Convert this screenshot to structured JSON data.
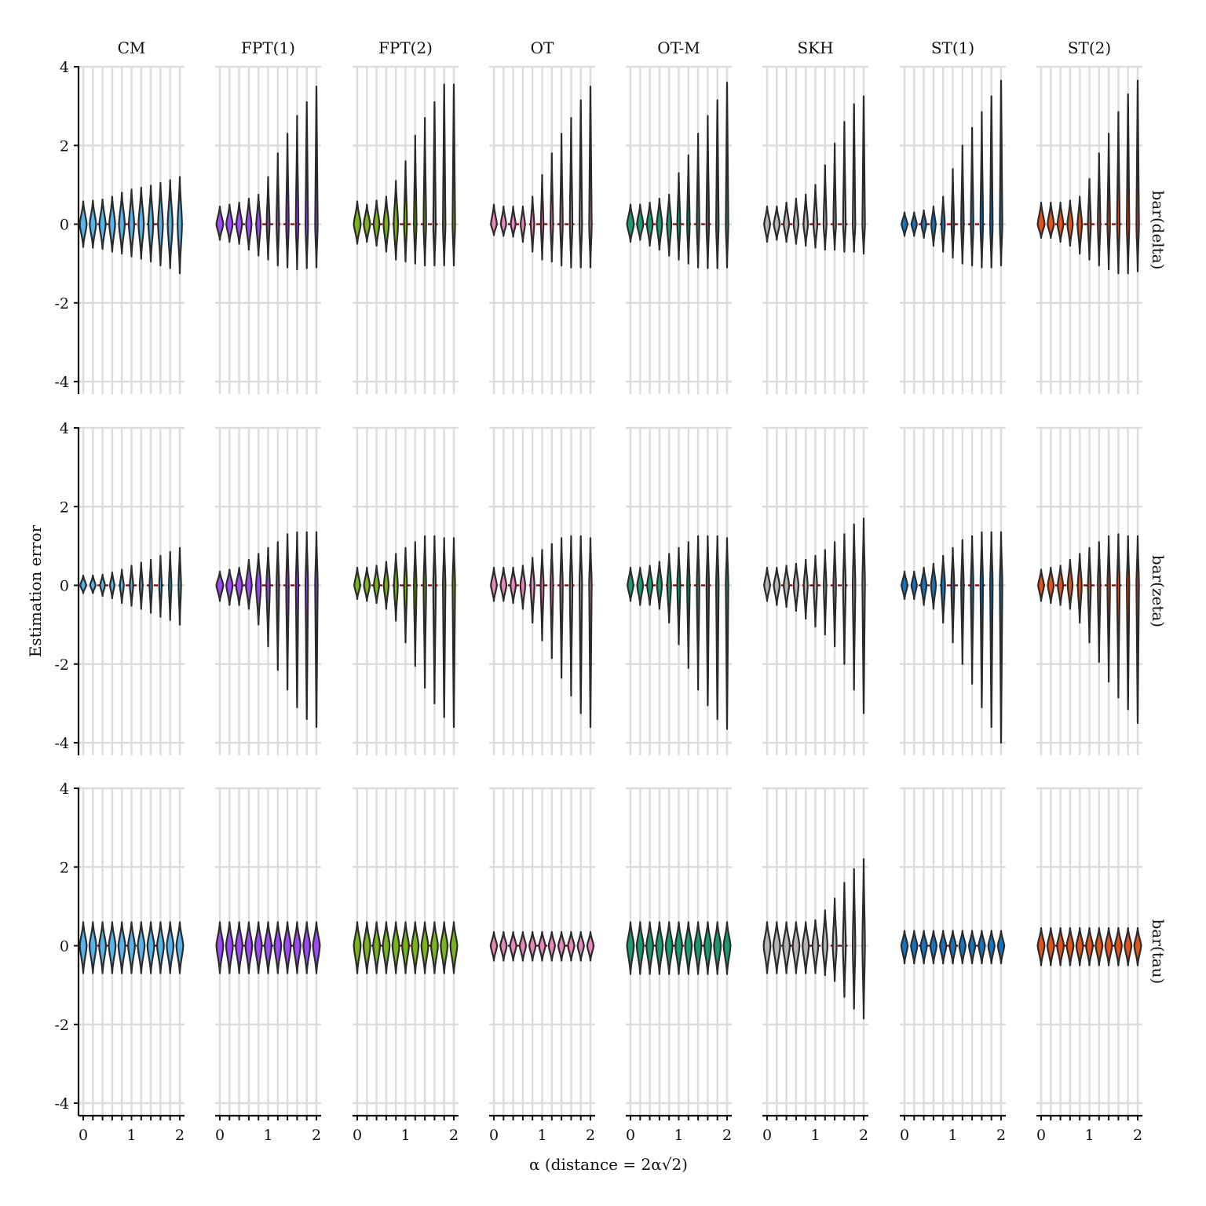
{
  "chart_data": {
    "type": "violin",
    "facet_columns": [
      "CM",
      "FPT(1)",
      "FPT(2)",
      "OT",
      "OT-M",
      "SKH",
      "ST(1)",
      "ST(2)"
    ],
    "facet_rows": [
      "bar(delta)",
      "bar(zeta)",
      "bar(tau)"
    ],
    "xlabel": "α (distance  = 2α√2)",
    "ylabel": "Estimation error",
    "xlim": [
      0,
      2
    ],
    "ylim": [
      -4,
      4
    ],
    "x_ticks": [
      0,
      1,
      2
    ],
    "y_ticks": [
      4,
      2,
      0,
      -2,
      -4
    ],
    "x": [
      0,
      0.2,
      0.4,
      0.6,
      0.8,
      1.0,
      1.2,
      1.4,
      1.6,
      1.8,
      2.0
    ],
    "reference_line": {
      "y": 0,
      "color": "#8b0000",
      "style": "dashed",
      "x_range": [
        0,
        1.6
      ]
    },
    "grid": true,
    "colors": {
      "CM": "#56b4e9",
      "FPT(1)": "#9d4af7",
      "FPT(2)": "#7bb31a",
      "OT": "#e589ba",
      "OT-M": "#1a9a70",
      "SKH": "#b3b3b3",
      "ST(1)": "#1673be",
      "ST(2)": "#e0531a"
    },
    "panels": {
      "bar(delta)": {
        "CM": {
          "max": [
            0.58,
            0.6,
            0.63,
            0.7,
            0.8,
            0.88,
            0.93,
            0.98,
            1.05,
            1.12,
            1.2
          ],
          "min": [
            -0.58,
            -0.6,
            -0.63,
            -0.7,
            -0.75,
            -0.82,
            -0.88,
            -0.95,
            -1.05,
            -1.12,
            -1.25
          ],
          "width": [
            0.14,
            0.13,
            0.13,
            0.12,
            0.12,
            0.11,
            0.11,
            0.1,
            0.1,
            0.1,
            0.09
          ]
        },
        "FPT(1)": {
          "max": [
            0.45,
            0.5,
            0.55,
            0.65,
            0.75,
            1.2,
            1.8,
            2.3,
            2.75,
            3.1,
            3.5
          ],
          "min": [
            -0.4,
            -0.45,
            -0.5,
            -0.65,
            -0.8,
            -0.9,
            -1.05,
            -1.1,
            -1.15,
            -1.12,
            -1.1
          ],
          "width": [
            0.14,
            0.13,
            0.12,
            0.11,
            0.09,
            0.06,
            0.04,
            0.03,
            0.03,
            0.03,
            0.03
          ]
        },
        "FPT(2)": {
          "max": [
            0.58,
            0.5,
            0.6,
            0.7,
            1.1,
            1.6,
            2.25,
            2.7,
            3.1,
            3.55,
            3.55
          ],
          "min": [
            -0.5,
            -0.45,
            -0.55,
            -0.7,
            -0.9,
            -0.95,
            -1.0,
            -1.05,
            -1.05,
            -1.05,
            -1.05
          ],
          "width": [
            0.14,
            0.13,
            0.12,
            0.11,
            0.09,
            0.06,
            0.04,
            0.03,
            0.03,
            0.03,
            0.03
          ]
        },
        "OT": {
          "max": [
            0.5,
            0.45,
            0.45,
            0.45,
            0.7,
            1.25,
            1.8,
            2.3,
            2.7,
            3.15,
            3.5
          ],
          "min": [
            -0.28,
            -0.3,
            -0.32,
            -0.45,
            -0.7,
            -0.9,
            -0.95,
            -1.05,
            -1.1,
            -1.1,
            -1.1
          ],
          "width": [
            0.12,
            0.11,
            0.1,
            0.09,
            0.07,
            0.05,
            0.04,
            0.03,
            0.03,
            0.03,
            0.03
          ]
        },
        "OT-M": {
          "max": [
            0.5,
            0.5,
            0.55,
            0.65,
            0.75,
            1.3,
            1.75,
            2.3,
            2.75,
            3.15,
            3.6
          ],
          "min": [
            -0.45,
            -0.4,
            -0.55,
            -0.65,
            -0.8,
            -0.9,
            -1.0,
            -1.1,
            -1.12,
            -1.12,
            -1.1
          ],
          "width": [
            0.14,
            0.13,
            0.12,
            0.11,
            0.09,
            0.06,
            0.04,
            0.03,
            0.03,
            0.03,
            0.03
          ]
        },
        "SKH": {
          "max": [
            0.45,
            0.45,
            0.55,
            0.65,
            0.75,
            1.0,
            1.5,
            2.05,
            2.6,
            3.05,
            3.25
          ],
          "min": [
            -0.45,
            -0.4,
            -0.45,
            -0.5,
            -0.55,
            -0.6,
            -0.65,
            -0.65,
            -0.7,
            -0.7,
            -0.75
          ],
          "width": [
            0.12,
            0.12,
            0.11,
            0.1,
            0.09,
            0.08,
            0.06,
            0.05,
            0.04,
            0.04,
            0.03
          ]
        },
        "ST(1)": {
          "max": [
            0.3,
            0.3,
            0.35,
            0.45,
            0.7,
            1.4,
            2.0,
            2.45,
            2.85,
            3.25,
            3.65
          ],
          "min": [
            -0.3,
            -0.3,
            -0.35,
            -0.55,
            -0.7,
            -0.85,
            -1.0,
            -1.05,
            -1.1,
            -1.1,
            -1.05
          ],
          "width": [
            0.12,
            0.11,
            0.1,
            0.09,
            0.07,
            0.05,
            0.04,
            0.03,
            0.03,
            0.03,
            0.03
          ]
        },
        "ST(2)": {
          "max": [
            0.55,
            0.55,
            0.55,
            0.6,
            0.7,
            1.15,
            1.8,
            2.3,
            2.85,
            3.3,
            3.65
          ],
          "min": [
            -0.35,
            -0.35,
            -0.45,
            -0.55,
            -0.75,
            -0.9,
            -1.05,
            -1.15,
            -1.25,
            -1.25,
            -1.2
          ],
          "width": [
            0.14,
            0.13,
            0.12,
            0.11,
            0.09,
            0.06,
            0.04,
            0.03,
            0.03,
            0.03,
            0.03
          ]
        }
      },
      "bar(zeta)": {
        "CM": {
          "max": [
            0.25,
            0.25,
            0.27,
            0.33,
            0.4,
            0.5,
            0.58,
            0.65,
            0.75,
            0.85,
            0.95
          ],
          "min": [
            -0.2,
            -0.2,
            -0.27,
            -0.33,
            -0.45,
            -0.52,
            -0.6,
            -0.7,
            -0.8,
            -0.88,
            -1.0
          ],
          "width": [
            0.12,
            0.11,
            0.1,
            0.09,
            0.08,
            0.07,
            0.06,
            0.05,
            0.04,
            0.04,
            0.03
          ]
        },
        "FPT(1)": {
          "max": [
            0.35,
            0.4,
            0.45,
            0.65,
            0.8,
            0.95,
            1.1,
            1.3,
            1.35,
            1.35,
            1.35
          ],
          "min": [
            -0.4,
            -0.5,
            -0.5,
            -0.6,
            -1.0,
            -1.55,
            -2.15,
            -2.65,
            -3.1,
            -3.4,
            -3.6
          ],
          "width": [
            0.14,
            0.13,
            0.13,
            0.12,
            0.1,
            0.07,
            0.04,
            0.03,
            0.03,
            0.03,
            0.03
          ]
        },
        "FPT(2)": {
          "max": [
            0.45,
            0.45,
            0.5,
            0.6,
            0.8,
            0.95,
            1.1,
            1.25,
            1.25,
            1.2,
            1.2
          ],
          "min": [
            -0.35,
            -0.4,
            -0.45,
            -0.6,
            -0.9,
            -1.45,
            -2.05,
            -2.6,
            -3.0,
            -3.35,
            -3.6
          ],
          "width": [
            0.12,
            0.12,
            0.11,
            0.1,
            0.08,
            0.06,
            0.04,
            0.03,
            0.03,
            0.03,
            0.03
          ]
        },
        "OT": {
          "max": [
            0.45,
            0.45,
            0.45,
            0.5,
            0.7,
            0.9,
            1.05,
            1.2,
            1.25,
            1.25,
            1.2
          ],
          "min": [
            -0.4,
            -0.4,
            -0.45,
            -0.6,
            -0.95,
            -1.4,
            -1.85,
            -2.35,
            -2.8,
            -3.25,
            -3.6
          ],
          "width": [
            0.12,
            0.12,
            0.11,
            0.1,
            0.08,
            0.06,
            0.04,
            0.03,
            0.03,
            0.03,
            0.03
          ]
        },
        "OT-M": {
          "max": [
            0.45,
            0.45,
            0.5,
            0.6,
            0.8,
            0.95,
            1.1,
            1.25,
            1.25,
            1.25,
            1.2
          ],
          "min": [
            -0.4,
            -0.5,
            -0.5,
            -0.6,
            -0.95,
            -1.5,
            -2.1,
            -2.65,
            -3.05,
            -3.4,
            -3.65
          ],
          "width": [
            0.12,
            0.12,
            0.11,
            0.1,
            0.08,
            0.06,
            0.04,
            0.03,
            0.03,
            0.03,
            0.03
          ]
        },
        "SKH": {
          "max": [
            0.45,
            0.45,
            0.5,
            0.55,
            0.65,
            0.75,
            0.9,
            1.1,
            1.3,
            1.55,
            1.7
          ],
          "min": [
            -0.4,
            -0.5,
            -0.55,
            -0.65,
            -0.85,
            -1.05,
            -1.25,
            -1.55,
            -2.0,
            -2.65,
            -3.25
          ],
          "width": [
            0.12,
            0.12,
            0.11,
            0.1,
            0.08,
            0.07,
            0.05,
            0.04,
            0.04,
            0.03,
            0.03
          ]
        },
        "ST(1)": {
          "max": [
            0.35,
            0.35,
            0.45,
            0.55,
            0.75,
            0.95,
            1.15,
            1.25,
            1.35,
            1.35,
            1.35
          ],
          "min": [
            -0.35,
            -0.35,
            -0.5,
            -0.6,
            -0.95,
            -1.45,
            -2.0,
            -2.5,
            -3.1,
            -3.6,
            -4.0
          ],
          "width": [
            0.12,
            0.11,
            0.11,
            0.1,
            0.08,
            0.06,
            0.04,
            0.03,
            0.03,
            0.03,
            0.03
          ]
        },
        "ST(2)": {
          "max": [
            0.4,
            0.45,
            0.5,
            0.65,
            0.8,
            0.95,
            1.1,
            1.25,
            1.3,
            1.25,
            1.25
          ],
          "min": [
            -0.4,
            -0.45,
            -0.5,
            -0.6,
            -0.95,
            -1.45,
            -1.95,
            -2.45,
            -2.85,
            -3.15,
            -3.5
          ],
          "width": [
            0.12,
            0.12,
            0.11,
            0.1,
            0.08,
            0.06,
            0.04,
            0.03,
            0.03,
            0.03,
            0.03
          ]
        }
      },
      "bar(tau)": {
        "CM": {
          "max": [
            0.6,
            0.6,
            0.6,
            0.6,
            0.6,
            0.6,
            0.6,
            0.6,
            0.6,
            0.6,
            0.6
          ],
          "min": [
            -0.7,
            -0.7,
            -0.7,
            -0.7,
            -0.7,
            -0.7,
            -0.7,
            -0.7,
            -0.7,
            -0.7,
            -0.7
          ],
          "width": [
            0.14,
            0.14,
            0.14,
            0.14,
            0.14,
            0.14,
            0.14,
            0.14,
            0.14,
            0.14,
            0.14
          ]
        },
        "FPT(1)": {
          "max": [
            0.6,
            0.6,
            0.6,
            0.6,
            0.6,
            0.6,
            0.6,
            0.6,
            0.6,
            0.6,
            0.6
          ],
          "min": [
            -0.7,
            -0.7,
            -0.7,
            -0.7,
            -0.7,
            -0.7,
            -0.7,
            -0.7,
            -0.7,
            -0.7,
            -0.7
          ],
          "width": [
            0.14,
            0.14,
            0.14,
            0.14,
            0.14,
            0.14,
            0.14,
            0.14,
            0.14,
            0.14,
            0.14
          ]
        },
        "FPT(2)": {
          "max": [
            0.6,
            0.6,
            0.6,
            0.6,
            0.6,
            0.6,
            0.6,
            0.6,
            0.6,
            0.6,
            0.6
          ],
          "min": [
            -0.7,
            -0.7,
            -0.7,
            -0.7,
            -0.7,
            -0.7,
            -0.7,
            -0.7,
            -0.7,
            -0.7,
            -0.7
          ],
          "width": [
            0.14,
            0.14,
            0.14,
            0.14,
            0.14,
            0.14,
            0.14,
            0.14,
            0.14,
            0.14,
            0.14
          ]
        },
        "OT": {
          "max": [
            0.35,
            0.35,
            0.35,
            0.35,
            0.35,
            0.35,
            0.35,
            0.35,
            0.35,
            0.35,
            0.35
          ],
          "min": [
            -0.38,
            -0.38,
            -0.38,
            -0.38,
            -0.38,
            -0.38,
            -0.38,
            -0.38,
            -0.38,
            -0.38,
            -0.38
          ],
          "width": [
            0.13,
            0.13,
            0.13,
            0.13,
            0.13,
            0.13,
            0.13,
            0.13,
            0.13,
            0.13,
            0.13
          ]
        },
        "OT-M": {
          "max": [
            0.6,
            0.6,
            0.6,
            0.6,
            0.6,
            0.6,
            0.6,
            0.6,
            0.6,
            0.6,
            0.6
          ],
          "min": [
            -0.72,
            -0.72,
            -0.72,
            -0.72,
            -0.72,
            -0.72,
            -0.72,
            -0.72,
            -0.72,
            -0.72,
            -0.72
          ],
          "width": [
            0.14,
            0.14,
            0.14,
            0.14,
            0.14,
            0.14,
            0.14,
            0.14,
            0.14,
            0.14,
            0.14
          ]
        },
        "SKH": {
          "max": [
            0.6,
            0.6,
            0.6,
            0.6,
            0.6,
            0.65,
            0.9,
            1.2,
            1.6,
            1.95,
            2.2
          ],
          "min": [
            -0.7,
            -0.7,
            -0.7,
            -0.7,
            -0.7,
            -0.7,
            -0.75,
            -0.9,
            -1.3,
            -1.6,
            -1.85
          ],
          "width": [
            0.14,
            0.14,
            0.14,
            0.14,
            0.13,
            0.12,
            0.1,
            0.08,
            0.06,
            0.05,
            0.04
          ]
        },
        "ST(1)": {
          "max": [
            0.38,
            0.38,
            0.38,
            0.38,
            0.38,
            0.38,
            0.38,
            0.38,
            0.38,
            0.38,
            0.38
          ],
          "min": [
            -0.45,
            -0.45,
            -0.45,
            -0.45,
            -0.45,
            -0.45,
            -0.45,
            -0.45,
            -0.45,
            -0.45,
            -0.45
          ],
          "width": [
            0.13,
            0.13,
            0.13,
            0.13,
            0.13,
            0.13,
            0.13,
            0.13,
            0.13,
            0.13,
            0.13
          ]
        },
        "ST(2)": {
          "max": [
            0.45,
            0.45,
            0.45,
            0.45,
            0.45,
            0.45,
            0.45,
            0.45,
            0.45,
            0.45,
            0.45
          ],
          "min": [
            -0.5,
            -0.5,
            -0.5,
            -0.5,
            -0.5,
            -0.5,
            -0.5,
            -0.5,
            -0.5,
            -0.5,
            -0.5
          ],
          "width": [
            0.14,
            0.14,
            0.14,
            0.14,
            0.14,
            0.14,
            0.14,
            0.14,
            0.14,
            0.14,
            0.14
          ]
        }
      }
    }
  }
}
